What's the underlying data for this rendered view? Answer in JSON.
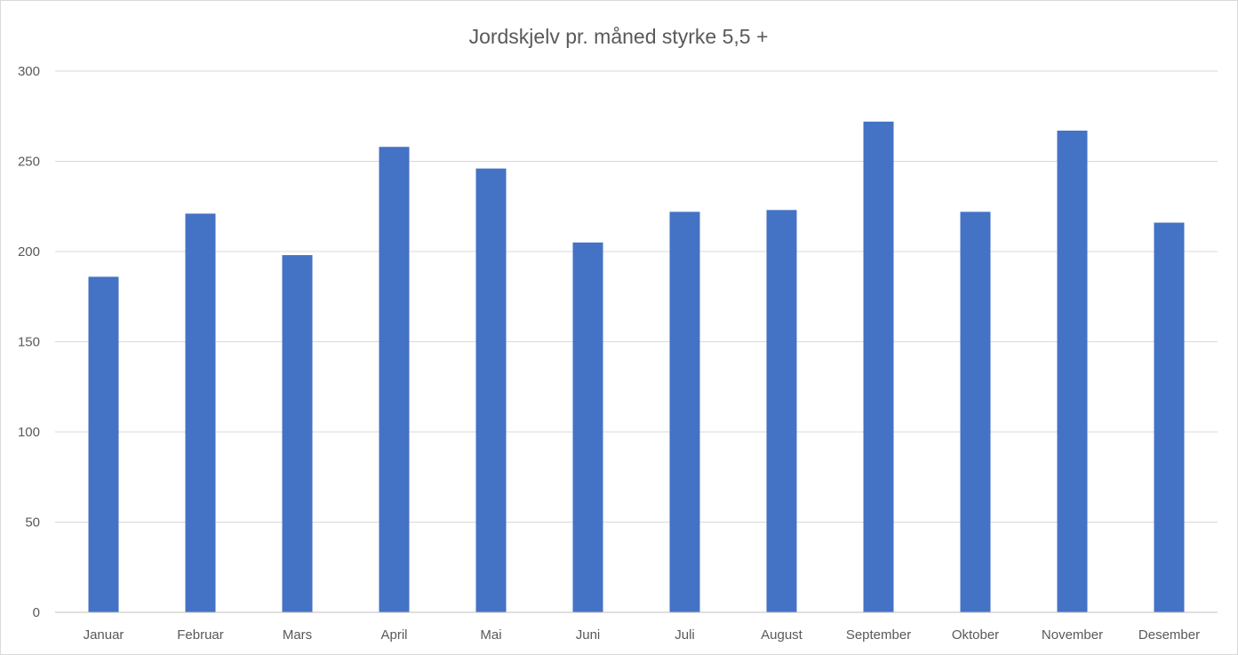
{
  "chart_data": {
    "type": "bar",
    "title": "Jordskjelv pr. måned styrke 5,5 +",
    "xlabel": "",
    "ylabel": "",
    "categories": [
      "Januar",
      "Februar",
      "Mars",
      "April",
      "Mai",
      "Juni",
      "Juli",
      "August",
      "September",
      "Oktober",
      "November",
      "Desember"
    ],
    "values": [
      186,
      221,
      198,
      258,
      246,
      205,
      222,
      223,
      272,
      222,
      267,
      216
    ],
    "ylim": [
      0,
      300
    ],
    "yticks": [
      0,
      50,
      100,
      150,
      200,
      250,
      300
    ],
    "grid": true,
    "legend": "none",
    "bar_color": "#4472C4"
  }
}
